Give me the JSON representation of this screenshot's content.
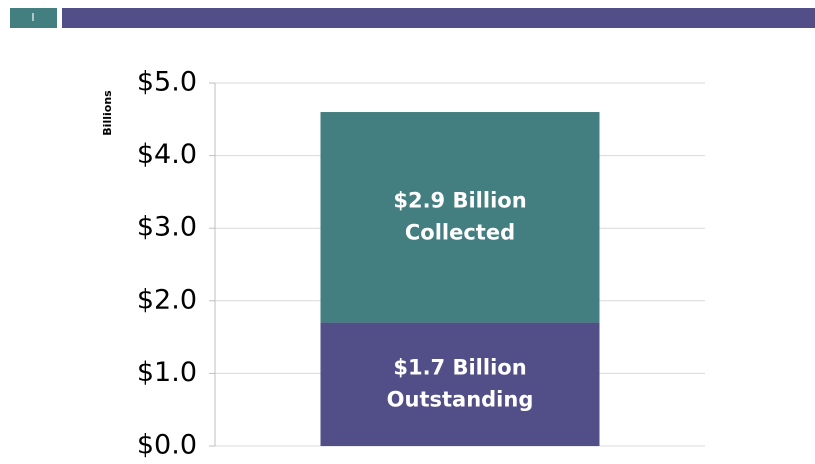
{
  "header": {
    "slide_number": "I"
  },
  "chart_data": {
    "type": "stacked_bar",
    "y_label": "Billions",
    "categories": [
      null
    ],
    "series": [
      {
        "name": "Outstanding",
        "color": "#524f88",
        "values": [
          1.7
        ],
        "value_labels": [
          "$1.7 Billion"
        ]
      },
      {
        "name": "Collected",
        "color": "#437e80",
        "values": [
          2.9
        ],
        "value_labels": [
          "$2.9 Billion"
        ]
      }
    ],
    "ylim": [
      0,
      5
    ],
    "yticks": [
      {
        "value": 0,
        "label": "$0.0"
      },
      {
        "value": 1,
        "label": "$1.0"
      },
      {
        "value": 2,
        "label": "$2.0"
      },
      {
        "value": 3,
        "label": "$3.0"
      },
      {
        "value": 4,
        "label": "$4.0"
      },
      {
        "value": 5,
        "label": "$5.0"
      }
    ],
    "grid": true
  }
}
